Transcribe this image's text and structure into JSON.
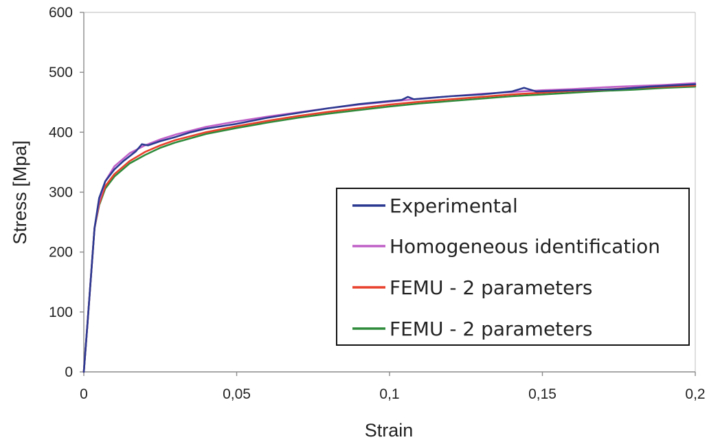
{
  "chart_data": {
    "type": "line",
    "title": "",
    "xlabel": "Strain",
    "ylabel": "Stress [Mpa]",
    "xlim": [
      0,
      0.2
    ],
    "ylim": [
      0,
      600
    ],
    "x_ticks": [
      "0",
      "0,05",
      "0,1",
      "0,15",
      "0,2"
    ],
    "y_ticks": [
      "0",
      "100",
      "200",
      "300",
      "400",
      "500",
      "600"
    ],
    "grid": false,
    "legend_position": "bottom-right",
    "series": [
      {
        "name": "Experimental",
        "color": "#2b3990",
        "points": [
          [
            0,
            0
          ],
          [
            0.0012,
            80
          ],
          [
            0.0025,
            170
          ],
          [
            0.0035,
            240
          ],
          [
            0.005,
            290
          ],
          [
            0.007,
            318
          ],
          [
            0.01,
            338
          ],
          [
            0.013,
            352
          ],
          [
            0.017,
            368
          ],
          [
            0.019,
            380
          ],
          [
            0.021,
            378
          ],
          [
            0.025,
            385
          ],
          [
            0.03,
            392
          ],
          [
            0.035,
            400
          ],
          [
            0.04,
            406
          ],
          [
            0.05,
            414
          ],
          [
            0.06,
            424
          ],
          [
            0.07,
            432
          ],
          [
            0.08,
            440
          ],
          [
            0.09,
            447
          ],
          [
            0.1,
            452
          ],
          [
            0.104,
            454
          ],
          [
            0.106,
            459
          ],
          [
            0.108,
            455
          ],
          [
            0.12,
            460
          ],
          [
            0.13,
            463
          ],
          [
            0.14,
            468
          ],
          [
            0.144,
            474
          ],
          [
            0.148,
            468
          ],
          [
            0.16,
            470
          ],
          [
            0.175,
            472
          ],
          [
            0.185,
            476
          ],
          [
            0.2,
            480
          ]
        ]
      },
      {
        "name": "Homogeneous identification",
        "color": "#c060c8",
        "points": [
          [
            0,
            0
          ],
          [
            0.0012,
            80
          ],
          [
            0.0025,
            170
          ],
          [
            0.0035,
            240
          ],
          [
            0.005,
            285
          ],
          [
            0.007,
            318
          ],
          [
            0.01,
            343
          ],
          [
            0.015,
            365
          ],
          [
            0.02,
            378
          ],
          [
            0.025,
            388
          ],
          [
            0.03,
            396
          ],
          [
            0.04,
            409
          ],
          [
            0.05,
            418
          ],
          [
            0.06,
            426
          ],
          [
            0.07,
            433
          ],
          [
            0.08,
            440
          ],
          [
            0.09,
            446
          ],
          [
            0.1,
            451
          ],
          [
            0.11,
            456
          ],
          [
            0.12,
            460
          ],
          [
            0.13,
            464
          ],
          [
            0.14,
            467
          ],
          [
            0.15,
            470
          ],
          [
            0.16,
            472
          ],
          [
            0.17,
            475
          ],
          [
            0.18,
            477
          ],
          [
            0.19,
            479
          ],
          [
            0.2,
            482
          ]
        ]
      },
      {
        "name": "FEMU - 2 parameters",
        "color": "#e8402b",
        "points": [
          [
            0,
            0
          ],
          [
            0.0012,
            80
          ],
          [
            0.0025,
            170
          ],
          [
            0.0035,
            240
          ],
          [
            0.005,
            280
          ],
          [
            0.007,
            310
          ],
          [
            0.01,
            330
          ],
          [
            0.015,
            352
          ],
          [
            0.02,
            367
          ],
          [
            0.025,
            378
          ],
          [
            0.03,
            387
          ],
          [
            0.04,
            400
          ],
          [
            0.05,
            410
          ],
          [
            0.06,
            419
          ],
          [
            0.07,
            427
          ],
          [
            0.08,
            434
          ],
          [
            0.09,
            440
          ],
          [
            0.1,
            446
          ],
          [
            0.11,
            451
          ],
          [
            0.12,
            455
          ],
          [
            0.13,
            459
          ],
          [
            0.14,
            463
          ],
          [
            0.15,
            466
          ],
          [
            0.16,
            469
          ],
          [
            0.17,
            471
          ],
          [
            0.18,
            474
          ],
          [
            0.19,
            476
          ],
          [
            0.2,
            478
          ]
        ]
      },
      {
        "name": "FEMU - 2 parameters",
        "color": "#2e8b3a",
        "points": [
          [
            0,
            0
          ],
          [
            0.0012,
            80
          ],
          [
            0.0025,
            170
          ],
          [
            0.0035,
            240
          ],
          [
            0.005,
            278
          ],
          [
            0.007,
            306
          ],
          [
            0.01,
            326
          ],
          [
            0.015,
            348
          ],
          [
            0.02,
            362
          ],
          [
            0.025,
            374
          ],
          [
            0.03,
            383
          ],
          [
            0.04,
            397
          ],
          [
            0.05,
            407
          ],
          [
            0.06,
            416
          ],
          [
            0.07,
            424
          ],
          [
            0.08,
            431
          ],
          [
            0.09,
            437
          ],
          [
            0.1,
            443
          ],
          [
            0.11,
            448
          ],
          [
            0.12,
            452
          ],
          [
            0.13,
            456
          ],
          [
            0.14,
            460
          ],
          [
            0.15,
            463
          ],
          [
            0.16,
            466
          ],
          [
            0.17,
            469
          ],
          [
            0.18,
            471
          ],
          [
            0.19,
            474
          ],
          [
            0.2,
            476
          ]
        ]
      }
    ]
  }
}
